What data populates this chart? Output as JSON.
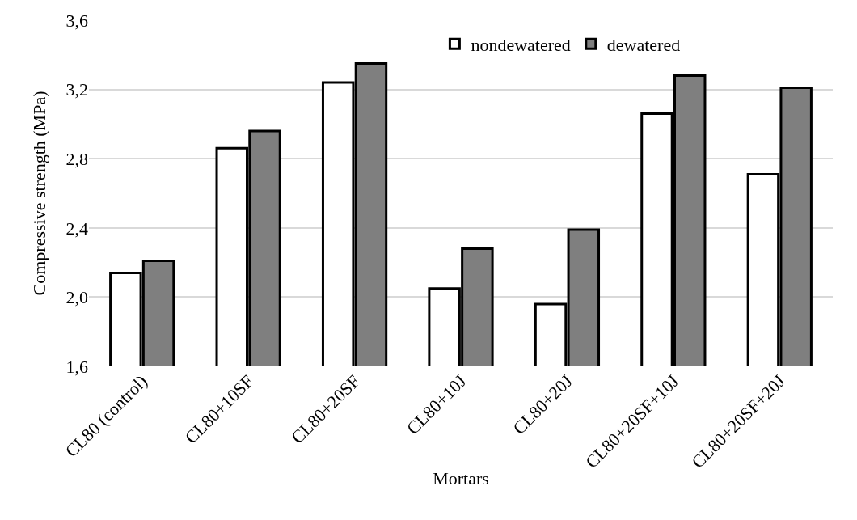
{
  "chart_data": {
    "type": "bar",
    "xlabel": "Mortars",
    "ylabel": "Compressive strength (MPa)",
    "categories": [
      "CL80 (control)",
      "CL80+10SF",
      "CL80+20SF",
      "CL80+10J",
      "CL80+20J",
      "CL80+20SF+10J",
      "CL80+20SF+20J"
    ],
    "series": [
      {
        "name": "nondewatered",
        "color": "#ffffff",
        "values": [
          2.14,
          2.86,
          3.24,
          2.05,
          1.96,
          3.06,
          2.71
        ]
      },
      {
        "name": "dewatered",
        "color": "#7f7f7f",
        "values": [
          2.21,
          2.96,
          3.35,
          2.28,
          2.39,
          3.28,
          3.21
        ]
      }
    ],
    "ylim": [
      1.6,
      3.6
    ],
    "yticks": [
      {
        "value": 1.6,
        "label": "1,6"
      },
      {
        "value": 2.0,
        "label": "2,0"
      },
      {
        "value": 2.4,
        "label": "2,4"
      },
      {
        "value": 2.8,
        "label": "2,8"
      },
      {
        "value": 3.2,
        "label": "3,2"
      },
      {
        "value": 3.6,
        "label": "3,6"
      }
    ],
    "grid": "y",
    "legend": "top"
  }
}
